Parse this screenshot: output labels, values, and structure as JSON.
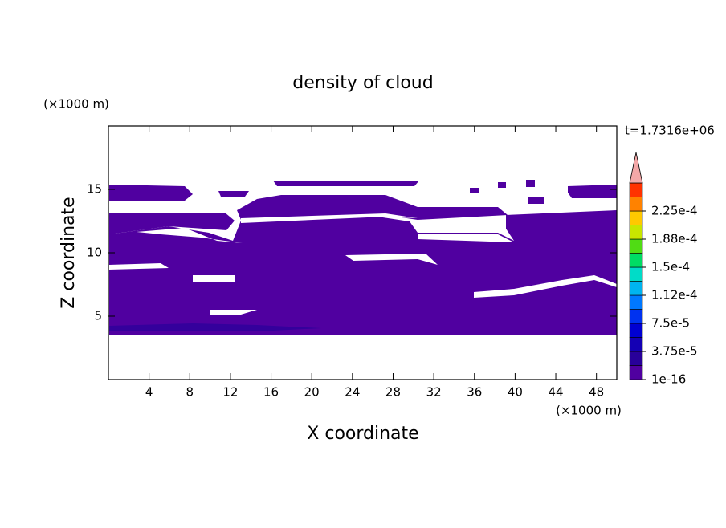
{
  "chart_data": {
    "type": "contour",
    "title": "density of cloud",
    "x_label": "X coordinate",
    "y_label": "Z coordinate",
    "x_unit": "(×1000 m)",
    "y_unit": "(×1000 m)",
    "time_label": "t=1.7316e+06",
    "xlim": [
      0,
      50
    ],
    "ylim": [
      0,
      20
    ],
    "xticks": [
      4,
      8,
      12,
      16,
      20,
      24,
      28,
      32,
      36,
      40,
      44,
      48
    ],
    "yticks": [
      5,
      10,
      15
    ],
    "colorbar": {
      "levels": [
        {
          "value": 1e-16,
          "label": "1e-16"
        },
        {
          "value": 3.75e-05,
          "label": "3.75e-5"
        },
        {
          "value": 7.5e-05,
          "label": "7.5e-5"
        },
        {
          "value": 0.000112,
          "label": "1.12e-4"
        },
        {
          "value": 0.00015,
          "label": "1.5e-4"
        },
        {
          "value": 0.000188,
          "label": "1.88e-4"
        },
        {
          "value": 0.000225,
          "label": "2.25e-4"
        }
      ],
      "colors": [
        "#5000a0",
        "#28009a",
        "#1400b4",
        "#0000d2",
        "#0032f0",
        "#0078ff",
        "#00b4f0",
        "#00dcc8",
        "#00dc64",
        "#50dc14",
        "#c8e600",
        "#ffc800",
        "#ff8200",
        "#ff3200"
      ],
      "extend_color": "#f4a8a8"
    }
  }
}
